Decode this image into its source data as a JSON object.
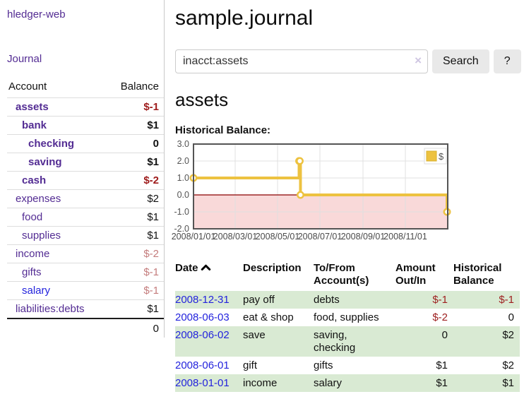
{
  "sidebar": {
    "brand": "hledger-web",
    "journal_link": "Journal",
    "accounts": {
      "headers": {
        "account": "Account",
        "balance": "Balance"
      },
      "rows": [
        {
          "name": "assets",
          "balance": "$-1"
        },
        {
          "name": "bank",
          "balance": "$1"
        },
        {
          "name": "checking",
          "balance": "0"
        },
        {
          "name": "saving",
          "balance": "$1"
        },
        {
          "name": "cash",
          "balance": "$-2"
        },
        {
          "name": "expenses",
          "balance": "$2"
        },
        {
          "name": "food",
          "balance": "$1"
        },
        {
          "name": "supplies",
          "balance": "$1"
        },
        {
          "name": "income",
          "balance": "$-2"
        },
        {
          "name": "gifts",
          "balance": "$-1"
        },
        {
          "name": "salary",
          "balance": "$-1"
        },
        {
          "name": "liabilities:debts",
          "balance": "$1"
        }
      ],
      "total": "0"
    }
  },
  "main": {
    "title": "sample.journal",
    "search": {
      "value": "inacct:assets",
      "clear_icon": "×",
      "search_button": "Search",
      "help_button": "?"
    },
    "account_heading": "assets",
    "chart_label": "Historical Balance:"
  },
  "chart_data": {
    "type": "line",
    "style": "step-after",
    "title": "Historical Balance",
    "series": [
      {
        "name": "$",
        "color": "#edc240",
        "x": [
          "2008-01-01",
          "2008-06-01",
          "2008-06-02",
          "2008-06-03",
          "2008-12-31"
        ],
        "y": [
          1,
          2,
          2,
          0,
          -1
        ]
      }
    ],
    "ylim": [
      -2,
      3
    ],
    "yticks": [
      3.0,
      2.0,
      1.0,
      0.0,
      -1.0,
      -2.0
    ],
    "xticks": [
      "2008/01/01",
      "2008/03/01",
      "2008/05/01",
      "2008/07/01",
      "2008/09/01",
      "2008/11/01"
    ],
    "xrange": [
      "2008-01-01",
      "2009-01-01"
    ],
    "grid": true,
    "legend": {
      "label": "$",
      "position": "top-right"
    },
    "negative_region_fill": "#f9d9d9",
    "zero_line_color": "#8b0000"
  },
  "transactions": {
    "headers": {
      "date": "Date",
      "description": "Description",
      "accounts": "To/From Account(s)",
      "amount": "Amount Out/In",
      "balance": "Historical Balance"
    },
    "rows": [
      {
        "date": "2008-12-31",
        "description": "pay off",
        "accounts": "debts",
        "amount": "$-1",
        "balance": "$-1"
      },
      {
        "date": "2008-06-03",
        "description": "eat & shop",
        "accounts": "food, supplies",
        "amount": "$-2",
        "balance": "0"
      },
      {
        "date": "2008-06-02",
        "description": "save",
        "accounts": "saving,\nchecking",
        "amount": "0",
        "balance": "$2"
      },
      {
        "date": "2008-06-01",
        "description": "gift",
        "accounts": "gifts",
        "amount": "$1",
        "balance": "$2"
      },
      {
        "date": "2008-01-01",
        "description": "income",
        "accounts": "salary",
        "amount": "$1",
        "balance": "$1"
      }
    ]
  },
  "colors": {
    "link_purple": "#532c93",
    "link_blue": "#2323dd",
    "negative_strong": "#9e1b1b",
    "negative_muted": "#c47c7c",
    "row_green": "#d9ead3",
    "chart_gold": "#edc240",
    "chart_border": "#545454"
  }
}
